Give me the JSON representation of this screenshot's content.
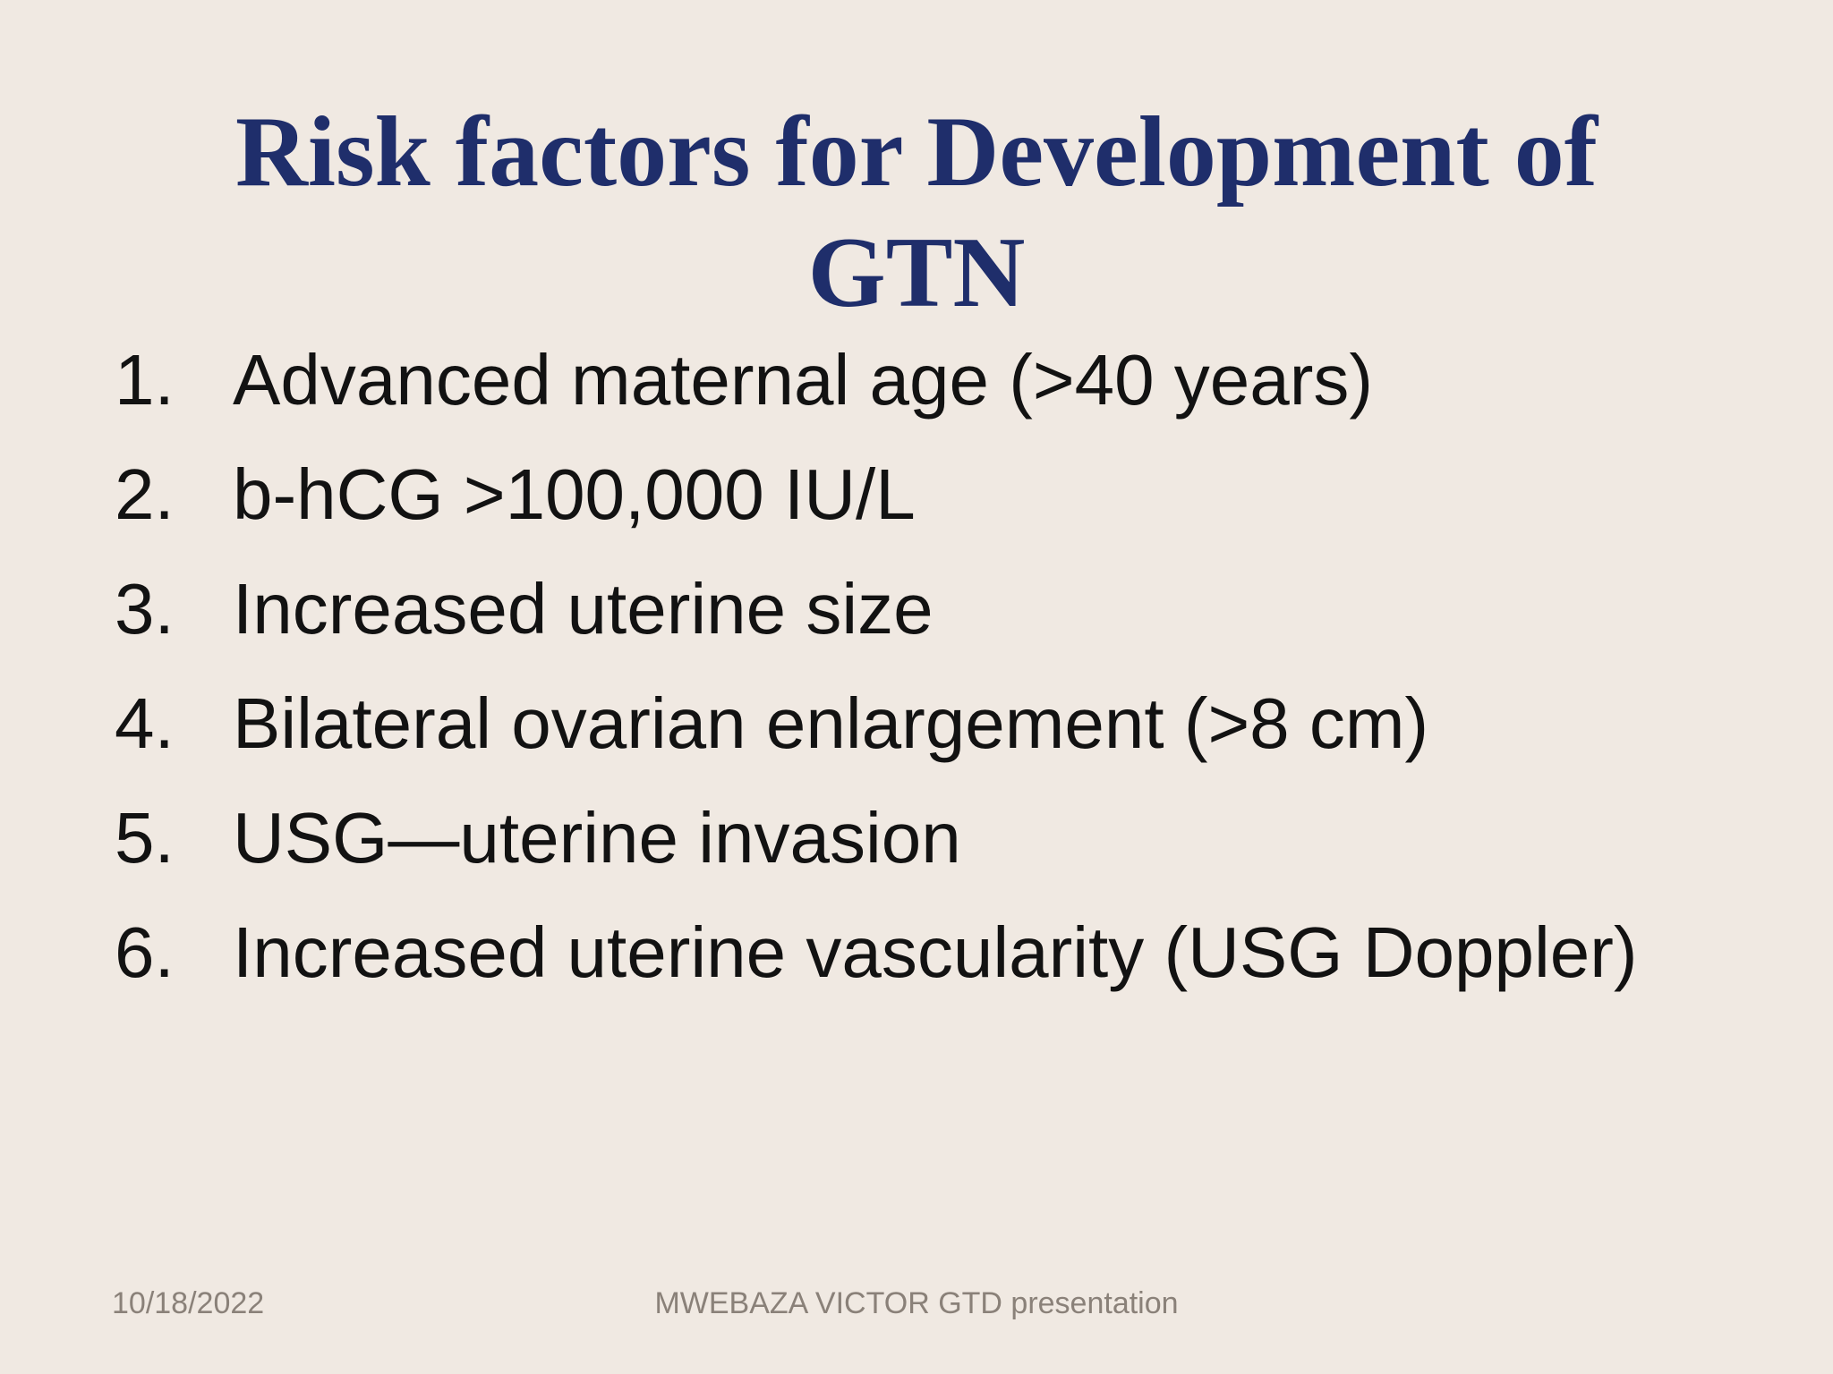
{
  "slide": {
    "title": {
      "line1": "Risk factors for Development of",
      "line2": "GTN"
    },
    "list": {
      "items": [
        {
          "number": "1.",
          "text": "Advanced maternal age (>40 years)"
        },
        {
          "number": "2.",
          "text": "b-hCG >100,000 IU/L"
        },
        {
          "number": "3.",
          "text": "Increased uterine size"
        },
        {
          "number": "4.",
          "text": "Bilateral ovarian enlargement (>8 cm)"
        },
        {
          "number": "5.",
          "text": "USG—uterine invasion"
        },
        {
          "number": "6.",
          "text": "Increased uterine vascularity (USG Doppler)"
        }
      ]
    },
    "footer": {
      "date": "10/18/2022",
      "credit": "MWEBAZA VICTOR GTD presentation"
    }
  },
  "colors": {
    "background": "#f0e9e2",
    "title_navy": "#1f2e6b",
    "body_text": "#121212",
    "footer_gray": "#8a8179"
  }
}
